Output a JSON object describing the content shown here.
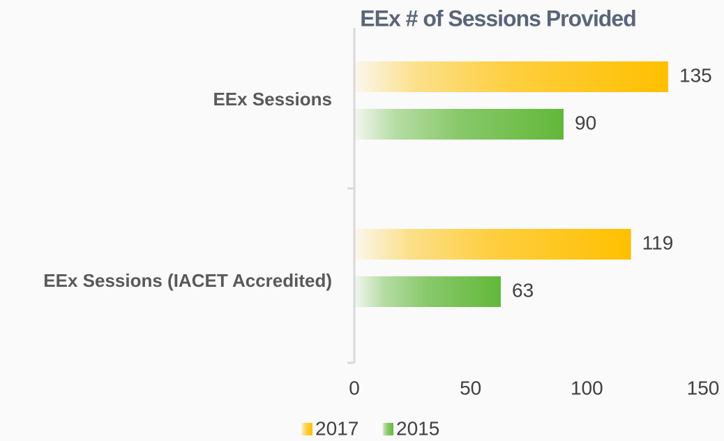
{
  "chart_data": {
    "type": "barh",
    "title": "EEx # of Sessions Provided",
    "categories": [
      "EEx Sessions",
      "EEx Sessions (IACET Accredited)"
    ],
    "series": [
      {
        "name": "2017",
        "color": "#ffc000",
        "values": [
          135,
          119
        ]
      },
      {
        "name": "2015",
        "color": "#62b83a",
        "values": [
          90,
          63
        ]
      }
    ],
    "xlim": [
      0,
      150
    ],
    "xticks": [
      0,
      50,
      100,
      150
    ],
    "grid": false,
    "legend": "bottom"
  }
}
